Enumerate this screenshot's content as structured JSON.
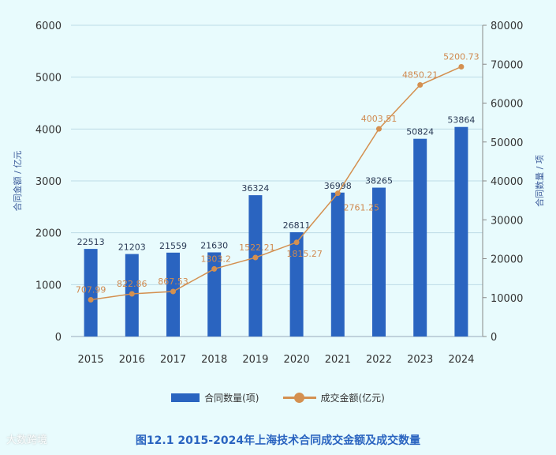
{
  "chart_data": {
    "type": "bar",
    "title": "图12.1   2015-2024年上海技术合同成交金额及成交数量",
    "categories": [
      "2015",
      "2016",
      "2017",
      "2018",
      "2019",
      "2020",
      "2021",
      "2022",
      "2023",
      "2024"
    ],
    "series": [
      {
        "name": "合同数量(项)",
        "kind": "bar",
        "axis": "right",
        "color": "#2a64c0",
        "values": [
          22513,
          21203,
          21559,
          21630,
          36324,
          26811,
          36998,
          38265,
          50824,
          53864
        ]
      },
      {
        "name": "成交金额(亿元)",
        "kind": "line",
        "axis": "left",
        "color": "#d49050",
        "values": [
          707.99,
          822.86,
          867.53,
          1303.2,
          1522.21,
          1815.27,
          2761.25,
          4003.51,
          4850.21,
          5200.73
        ]
      }
    ],
    "ylabel_left": "合同金额 / 亿元",
    "ylabel_right": "合同数量 / 项",
    "ylim_left": [
      0,
      6000
    ],
    "yticks_left": [
      0,
      1000,
      2000,
      3000,
      4000,
      5000,
      6000
    ],
    "ylim_right": [
      0,
      80000
    ],
    "yticks_right": [
      0,
      10000,
      20000,
      30000,
      40000,
      50000,
      60000,
      70000,
      80000
    ],
    "grid": true,
    "legend_position": "bottom"
  },
  "watermark": "大数跨境"
}
